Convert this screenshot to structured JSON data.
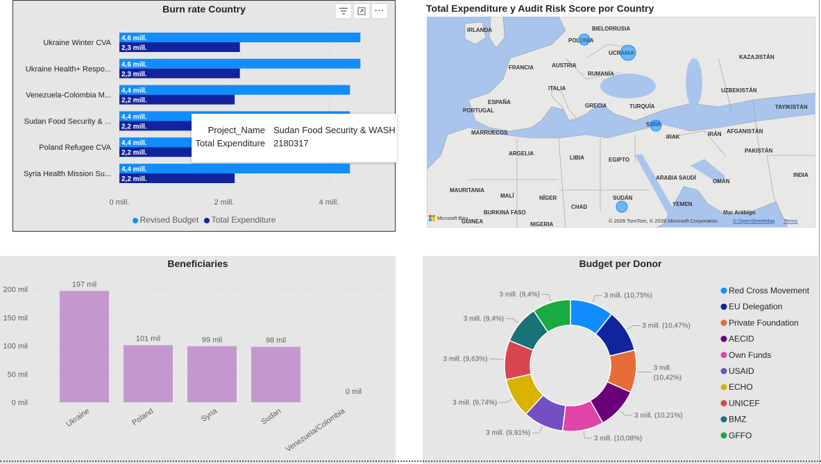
{
  "burn": {
    "title": "Burn rate Country",
    "icons": [
      "filter-icon",
      "focus-mode-icon",
      "more-options-icon"
    ],
    "rows": [
      {
        "label": "Ukraine Winter CVA",
        "budget": 4.6,
        "budget_label": "4,6 mill.",
        "expenditure": 2.3,
        "expenditure_label": "2,3 mill."
      },
      {
        "label": "Ukraine Health+ Respo...",
        "budget": 4.6,
        "budget_label": "4,6 mill.",
        "expenditure": 2.3,
        "expenditure_label": "2,3 mill."
      },
      {
        "label": "Venezuela-Colombia M...",
        "budget": 4.4,
        "budget_label": "4,4 mill.",
        "expenditure": 2.2,
        "expenditure_label": "2,2 mill."
      },
      {
        "label": "Sudan Food Security & ...",
        "budget": 4.4,
        "budget_label": "4,4 mill.",
        "expenditure": 2.2,
        "expenditure_label": "2,2 mill."
      },
      {
        "label": "Poland Refugee CVA",
        "budget": 4.4,
        "budget_label": "4,4 mill.",
        "expenditure": 2.2,
        "expenditure_label": "2,2 mill."
      },
      {
        "label": "Syria Health Mission Su...",
        "budget": 4.4,
        "budget_label": "4,4 mill.",
        "expenditure": 2.2,
        "expenditure_label": "2,2 mill."
      }
    ],
    "ticks": [
      {
        "v": 0,
        "label": "0 mill."
      },
      {
        "v": 2,
        "label": "2 mill."
      },
      {
        "v": 4,
        "label": "4 mill."
      }
    ],
    "xmax": 4.9,
    "legend": [
      {
        "name": "Revised Budget",
        "color": "#118dff"
      },
      {
        "name": "Total Expenditure",
        "color": "#12239e"
      }
    ],
    "tooltip": {
      "k1": "Project_Name",
      "v1": "Sudan Food Security & WASH",
      "k2": "Total Expenditure",
      "v2": "2180317"
    }
  },
  "map": {
    "title": "Total Expenditure y Audit Risk Score por Country",
    "labels": [
      "IRLANDA",
      "POLONIA",
      "BIELORRUSIA",
      "UCRANIA",
      "KAZAJISTÁN",
      "FRANCIA",
      "AUSTRIA",
      "RUMANÍA",
      "ITALIA",
      "UZBEKISTÁN",
      "ESPAÑA",
      "PORTUGAL",
      "GRECIA",
      "TURQUÍA",
      "TAYIKISTÁN",
      "SIRIA",
      "MARRUECOS",
      "IRAK",
      "IRÁN",
      "AFGANISTÁN",
      "ARGELIA",
      "LIBIA",
      "EGIPTO",
      "PAKISTÁN",
      "ARABIA SAUDÍ",
      "OMÁN",
      "INDIA",
      "MAURITANIA",
      "MALÍ",
      "NÍGER",
      "CHAD",
      "SUDÁN",
      "YEMEN",
      "BURKINA FASO",
      "GUINEA",
      "NIGERIA",
      "Mar Arábigo"
    ],
    "attribution": "© 2026 TomTom, © 2026 Microsoft Corporation,",
    "osm": "© OpenStreetMap",
    "terms": "Terms",
    "ms_logo_text": "Microsoft Bing"
  },
  "benef": {
    "title": "Beneficiaries",
    "chart_data": {
      "type": "bar",
      "categories": [
        "Ukraine",
        "Poland",
        "Syria",
        "Sudan",
        "Venezuela/Colombia"
      ],
      "values": [
        197000,
        101000,
        99000,
        98000,
        0
      ],
      "value_labels": [
        "197 mil",
        "101 mil",
        "99 mil",
        "98 mil",
        "0 mil"
      ],
      "yticks": [
        {
          "v": 0,
          "label": "0 mil"
        },
        {
          "v": 50000,
          "label": "50 mil"
        },
        {
          "v": 100000,
          "label": "100 mil"
        },
        {
          "v": 150000,
          "label": "150 mil"
        },
        {
          "v": 200000,
          "label": "200 mil"
        }
      ],
      "ylim": [
        0,
        200000
      ],
      "color": "#c497cf"
    }
  },
  "donor": {
    "title": "Budget per Donor",
    "chart_data": {
      "type": "pie",
      "slices": [
        {
          "name": "Red Cross Movement",
          "pct": 10.75,
          "label": "3 mill. (10,75%)",
          "color": "#118dff"
        },
        {
          "name": "EU Delegation",
          "pct": 10.47,
          "label": "3 mill. (10,47%)",
          "color": "#12239e"
        },
        {
          "name": "Private Foundation",
          "pct": 10.42,
          "label": "3 mill. (10,42%)",
          "color": "#e66c37"
        },
        {
          "name": "AECID",
          "pct": 10.21,
          "label": "3 mill. (10,21%)",
          "color": "#6b007b"
        },
        {
          "name": "Own Funds",
          "pct": 10.08,
          "label": "3 mill. (10,08%)",
          "color": "#e044a7"
        },
        {
          "name": "USAID",
          "pct": 9.91,
          "label": "3 mill. (9,91%)",
          "color": "#744ec2"
        },
        {
          "name": "ECHO",
          "pct": 9.74,
          "label": "3 mill. (9,74%)",
          "color": "#d9b300"
        },
        {
          "name": "UNICEF",
          "pct": 9.63,
          "label": "3 mill. (9,63%)",
          "color": "#d64550"
        },
        {
          "name": "BMZ",
          "pct": 9.4,
          "label": "3 mill. (9,4%)",
          "color": "#197278"
        },
        {
          "name": "GFFO",
          "pct": 9.4,
          "label": "3 mill. (9,4%)",
          "color": "#1aab40"
        }
      ]
    }
  }
}
